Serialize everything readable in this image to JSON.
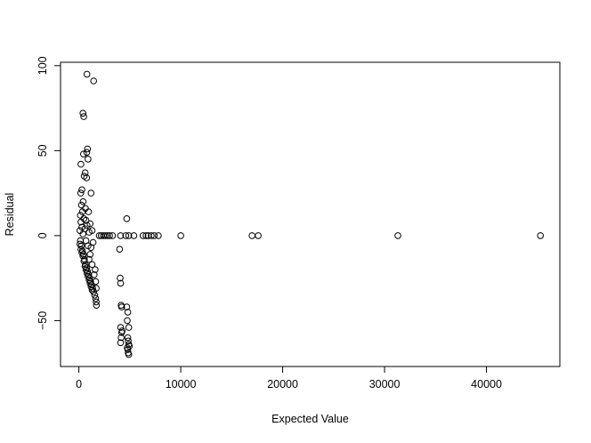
{
  "chart_data": {
    "type": "scatter",
    "title": "",
    "xlabel": "Expected Value",
    "ylabel": "Residual",
    "xlim": [
      -1800,
      47200
    ],
    "ylim": [
      -77,
      102
    ],
    "xticks": [
      0,
      10000,
      20000,
      30000,
      40000
    ],
    "xtick_labels": [
      "0",
      "10000",
      "20000",
      "30000",
      "40000"
    ],
    "yticks": [
      -50,
      0,
      50,
      100
    ],
    "ytick_labels": [
      "−50",
      "0",
      "50",
      "100"
    ],
    "grid": false,
    "legend": "none",
    "marker": "open-circle",
    "series": [
      {
        "points": [
          [
            790,
            95
          ],
          [
            1450,
            91
          ],
          [
            400,
            72
          ],
          [
            480,
            70
          ],
          [
            850,
            51
          ],
          [
            780,
            49
          ],
          [
            900,
            45
          ],
          [
            450,
            48
          ],
          [
            200,
            42
          ],
          [
            620,
            37
          ],
          [
            760,
            34
          ],
          [
            520,
            35
          ],
          [
            1200,
            25
          ],
          [
            300,
            27
          ],
          [
            180,
            25
          ],
          [
            420,
            20
          ],
          [
            250,
            18
          ],
          [
            650,
            16
          ],
          [
            350,
            14
          ],
          [
            950,
            14
          ],
          [
            150,
            12
          ],
          [
            500,
            10
          ],
          [
            700,
            9
          ],
          [
            1100,
            7
          ],
          [
            200,
            8
          ],
          [
            800,
            6
          ],
          [
            1300,
            3
          ],
          [
            1000,
            2
          ],
          [
            600,
            4
          ],
          [
            300,
            5
          ],
          [
            100,
            3
          ],
          [
            400,
            1
          ],
          [
            2000,
            0
          ],
          [
            2200,
            0
          ],
          [
            2400,
            0
          ],
          [
            2600,
            0
          ],
          [
            2800,
            0
          ],
          [
            3000,
            0
          ],
          [
            3300,
            0
          ],
          [
            4100,
            0
          ],
          [
            4600,
            0
          ],
          [
            4900,
            0
          ],
          [
            5400,
            0
          ],
          [
            6300,
            0
          ],
          [
            6600,
            0
          ],
          [
            6800,
            0
          ],
          [
            7100,
            0
          ],
          [
            7400,
            0
          ],
          [
            7800,
            0
          ],
          [
            10000,
            0
          ],
          [
            17000,
            0
          ],
          [
            17600,
            0
          ],
          [
            31300,
            0
          ],
          [
            45300,
            0
          ],
          [
            4700,
            10
          ],
          [
            4000,
            -8
          ],
          [
            100,
            -5
          ],
          [
            200,
            -8
          ],
          [
            300,
            -10
          ],
          [
            400,
            -12
          ],
          [
            500,
            -15
          ],
          [
            600,
            -18
          ],
          [
            700,
            -20
          ],
          [
            800,
            -22
          ],
          [
            900,
            -24
          ],
          [
            1000,
            -26
          ],
          [
            1100,
            -28
          ],
          [
            1200,
            -30
          ],
          [
            1300,
            -32
          ],
          [
            150,
            -3
          ],
          [
            250,
            -6
          ],
          [
            350,
            -9
          ],
          [
            450,
            -11
          ],
          [
            550,
            -14
          ],
          [
            650,
            -17
          ],
          [
            750,
            -19
          ],
          [
            850,
            -21
          ],
          [
            950,
            -23
          ],
          [
            1050,
            -25
          ],
          [
            1150,
            -27
          ],
          [
            1250,
            -29
          ],
          [
            1350,
            -31
          ],
          [
            1450,
            -33
          ],
          [
            1550,
            -35
          ],
          [
            1650,
            -37
          ],
          [
            1700,
            -39
          ],
          [
            1720,
            -41
          ],
          [
            1000,
            -14
          ],
          [
            1100,
            -11
          ],
          [
            1200,
            -7
          ],
          [
            1400,
            -4
          ],
          [
            1600,
            -20
          ],
          [
            1300,
            -17
          ],
          [
            900,
            -6
          ],
          [
            700,
            -3
          ],
          [
            1500,
            -23
          ],
          [
            1650,
            -27
          ],
          [
            1700,
            -31
          ],
          [
            4050,
            -25
          ],
          [
            4100,
            -28
          ],
          [
            4150,
            -41
          ],
          [
            4200,
            -42
          ],
          [
            4100,
            -54
          ],
          [
            4200,
            -57
          ],
          [
            4150,
            -60
          ],
          [
            4100,
            -63
          ],
          [
            4250,
            -56
          ],
          [
            4700,
            -42
          ],
          [
            4800,
            -45
          ],
          [
            4750,
            -50
          ],
          [
            4900,
            -54
          ],
          [
            4800,
            -60
          ],
          [
            4850,
            -62
          ],
          [
            4900,
            -64
          ],
          [
            4750,
            -66
          ],
          [
            4800,
            -67
          ],
          [
            4850,
            -69
          ],
          [
            4900,
            -70
          ],
          [
            4950,
            -65
          ]
        ]
      }
    ]
  }
}
